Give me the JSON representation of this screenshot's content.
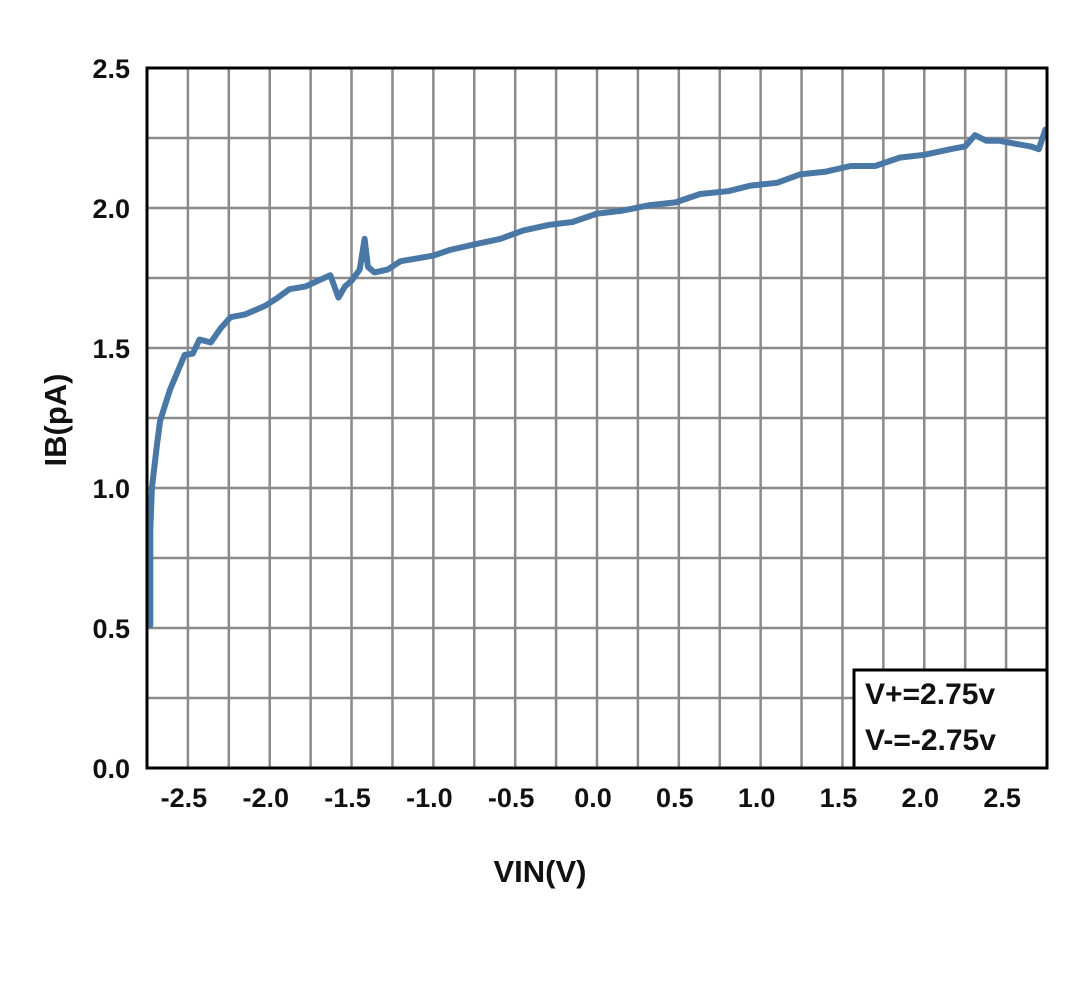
{
  "chart_data": {
    "type": "line",
    "title": "",
    "xlabel": "VIN(V)",
    "ylabel": "IB(pA)",
    "xlim": [
      -2.75,
      2.75
    ],
    "ylim": [
      0,
      2.5
    ],
    "grid": true,
    "x_ticks": [
      -2.5,
      -2.0,
      -1.5,
      -1.0,
      -0.5,
      0.0,
      0.5,
      1.0,
      1.5,
      2.0,
      2.5
    ],
    "x_tick_labels": [
      "-2.5",
      "-2.0",
      "-1.5",
      "-1.0",
      "-0.5",
      "0.0",
      "0.5",
      "1.0",
      "1.5",
      "2.0",
      "2.5"
    ],
    "y_ticks": [
      0,
      0.5,
      1.0,
      1.5,
      2.0,
      2.5
    ],
    "y_tick_labels": [
      "0.0",
      "0.5",
      "1.0",
      "1.5",
      "2.0",
      "2.5"
    ],
    "legend_placement": "bottom-right",
    "annotation_lines": [
      "V+=2.75v",
      "V-=-2.75v"
    ],
    "line_color": "#4a78a6",
    "series": [
      {
        "x": [
          -2.73,
          -2.73,
          -2.72,
          -2.69,
          -2.67,
          -2.61,
          -2.52,
          -2.47,
          -2.43,
          -2.36,
          -2.3,
          -2.24,
          -2.15,
          -2.03,
          -1.95,
          -1.88,
          -1.78,
          -1.63,
          -1.58,
          -1.54,
          -1.5,
          -1.45,
          -1.42,
          -1.4,
          -1.36,
          -1.28,
          -1.2,
          -1.1,
          -1.0,
          -0.9,
          -0.75,
          -0.59,
          -0.45,
          -0.29,
          -0.15,
          0.0,
          0.15,
          0.32,
          0.48,
          0.63,
          0.8,
          0.94,
          1.1,
          1.24,
          1.4,
          1.55,
          1.7,
          1.85,
          2.0,
          2.16,
          2.25,
          2.31,
          2.38,
          2.46,
          2.55,
          2.65,
          2.7,
          2.74
        ],
        "y": [
          0.51,
          0.85,
          1.0,
          1.15,
          1.24,
          1.35,
          1.475,
          1.48,
          1.53,
          1.52,
          1.57,
          1.61,
          1.62,
          1.65,
          1.68,
          1.71,
          1.72,
          1.76,
          1.68,
          1.72,
          1.74,
          1.78,
          1.89,
          1.79,
          1.77,
          1.78,
          1.81,
          1.82,
          1.83,
          1.85,
          1.87,
          1.89,
          1.92,
          1.94,
          1.95,
          1.98,
          1.99,
          2.01,
          2.02,
          2.05,
          2.06,
          2.08,
          2.09,
          2.12,
          2.13,
          2.15,
          2.15,
          2.18,
          2.19,
          2.21,
          2.22,
          2.26,
          2.24,
          2.24,
          2.23,
          2.22,
          2.21,
          2.28
        ]
      }
    ]
  }
}
